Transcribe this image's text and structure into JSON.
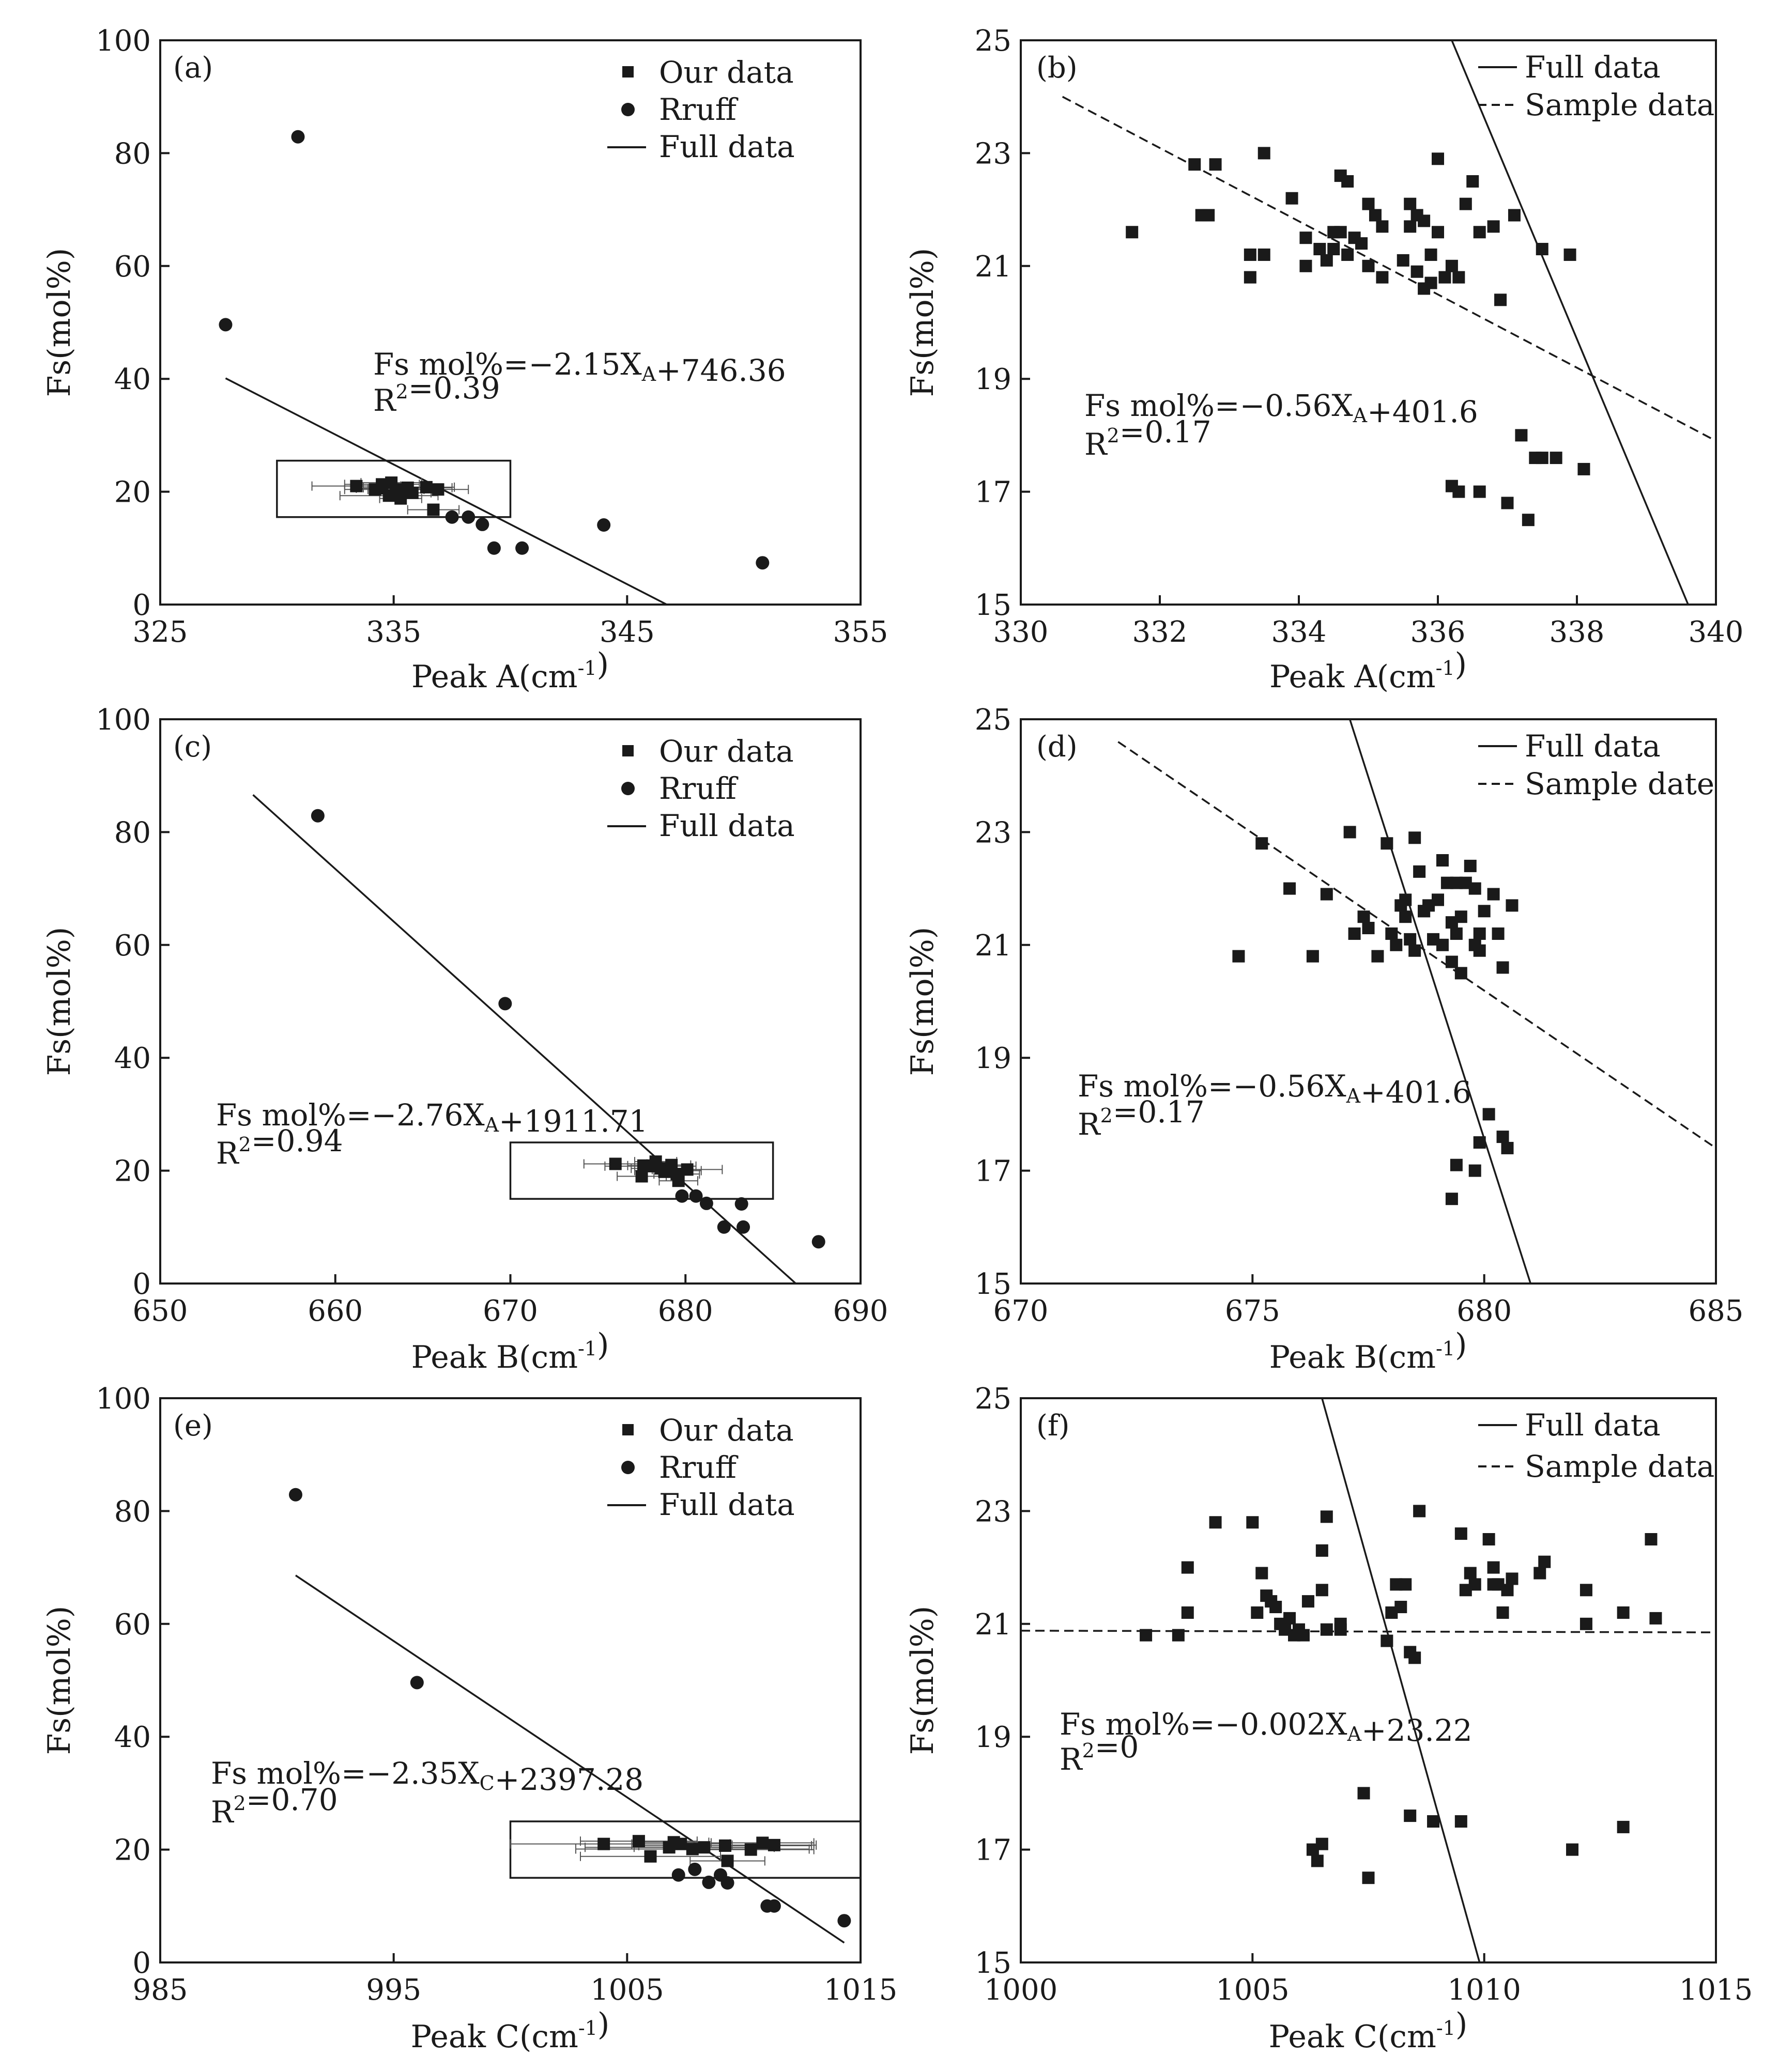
{
  "chart_data": [
    {
      "id": "a",
      "type": "scatter",
      "panel_label": "(a)",
      "xlabel": "Peak A(cm",
      "xlabel_sup": "-1",
      "xlabel_close": ")",
      "ylabel": "Fs(mol%)",
      "xlim": [
        325,
        355
      ],
      "ylim": [
        0,
        100
      ],
      "xticks": [
        325,
        335,
        345,
        355
      ],
      "yticks": [
        0,
        20,
        40,
        60,
        80,
        100
      ],
      "legend": [
        {
          "label": "Our data",
          "style": "square"
        },
        {
          "label": "Rruff",
          "style": "circle"
        },
        {
          "label": "Full data",
          "style": "solid"
        }
      ],
      "annotation": [
        [
          {
            "t": "Fs mol%=−2.15X"
          },
          {
            "t": "A",
            "sub": true
          },
          {
            "t": "+746.36"
          }
        ],
        [
          {
            "t": "R"
          },
          {
            "t": "2",
            "sup": true
          },
          {
            "t": "=0.39"
          }
        ]
      ],
      "box": {
        "x": [
          330,
          340
        ],
        "y": [
          15.5,
          25.5
        ]
      },
      "lines": [
        {
          "style": "solid",
          "x": [
            327.8,
            346.7
          ],
          "y": [
            40.1,
            0
          ]
        }
      ],
      "series": [
        {
          "marker": "square",
          "name": "Our data",
          "x": [
            333.4,
            334.2,
            334.5,
            334.8,
            335.1,
            335.6,
            336.4,
            334.5,
            335.3,
            336.7,
            334.9,
            335.8,
            336.9
          ],
          "y": [
            21.0,
            20.4,
            21.3,
            19.3,
            20.4,
            20.7,
            20.8,
            20.6,
            18.8,
            16.8,
            21.6,
            19.8,
            20.4
          ],
          "xerr": [
            1.9,
            1.3,
            1.6,
            2.1,
            1.2,
            1.9,
            1.2,
            1.1,
            0.9,
            1.1,
            1.3,
            0.8,
            1.3
          ]
        },
        {
          "marker": "circle",
          "name": "Rruff",
          "x": [
            330.9,
            327.8,
            337.5,
            338.2,
            338.8,
            339.3,
            340.5,
            344.0,
            350.8
          ],
          "y": [
            82.9,
            49.6,
            15.5,
            15.5,
            14.2,
            10.0,
            10.0,
            14.1,
            7.4
          ]
        }
      ]
    },
    {
      "id": "b",
      "type": "scatter",
      "panel_label": "(b)",
      "xlabel": "Peak A(cm",
      "xlabel_sup": "-1",
      "xlabel_close": ")",
      "ylabel": "Fs(mol%)",
      "xlim": [
        330,
        340
      ],
      "ylim": [
        15,
        25
      ],
      "xticks": [
        330,
        332,
        334,
        336,
        338,
        340
      ],
      "yticks": [
        15,
        17,
        19,
        21,
        23,
        25
      ],
      "legend": [
        {
          "label": "Full data",
          "style": "solid"
        },
        {
          "label": "Sample data",
          "style": "dashed"
        }
      ],
      "annotation": [
        [
          {
            "t": "Fs mol%=−0.56X"
          },
          {
            "t": "A",
            "sub": true
          },
          {
            "t": "+401.6"
          }
        ],
        [
          {
            "t": "R"
          },
          {
            "t": "2",
            "sup": true
          },
          {
            "t": "=0.17"
          }
        ]
      ],
      "lines": [
        {
          "style": "solid",
          "x": [
            336.2,
            339.6
          ],
          "y": [
            25,
            15
          ]
        },
        {
          "style": "dashed",
          "x": [
            330.6,
            340
          ],
          "y": [
            24.0,
            17.9
          ]
        }
      ],
      "series": [
        {
          "marker": "square",
          "name": "Our data",
          "x": [
            331.6,
            332.5,
            332.6,
            332.7,
            332.8,
            333.3,
            333.3,
            333.5,
            333.5,
            333.9,
            334.1,
            334.1,
            334.3,
            334.4,
            334.5,
            334.5,
            334.6,
            334.6,
            334.7,
            334.7,
            334.8,
            334.9,
            335.0,
            335.0,
            335.1,
            335.2,
            335.2,
            335.5,
            335.6,
            335.6,
            335.7,
            335.7,
            335.8,
            335.8,
            335.9,
            335.9,
            336.0,
            336.0,
            336.1,
            336.2,
            336.3,
            336.4,
            336.5,
            336.6,
            336.8,
            336.9,
            337.1,
            337.5,
            337.9,
            336.2,
            336.3,
            336.6,
            337.0,
            337.2,
            337.3,
            337.4,
            337.5,
            337.7,
            338.1
          ],
          "y": [
            21.6,
            22.8,
            21.9,
            21.9,
            22.8,
            20.8,
            21.2,
            21.2,
            23.0,
            22.2,
            21.5,
            21.0,
            21.3,
            21.1,
            21.6,
            21.3,
            21.6,
            22.6,
            22.5,
            21.2,
            21.5,
            21.4,
            22.1,
            21.0,
            21.9,
            21.7,
            20.8,
            21.1,
            22.1,
            21.7,
            20.9,
            21.9,
            20.6,
            21.8,
            21.2,
            20.7,
            22.9,
            21.6,
            20.8,
            21.0,
            20.8,
            22.1,
            22.5,
            21.6,
            21.7,
            20.4,
            21.9,
            21.3,
            21.2,
            17.1,
            17.0,
            17.0,
            16.8,
            18.0,
            16.5,
            17.6,
            17.6,
            17.6,
            17.4
          ]
        }
      ]
    },
    {
      "id": "c",
      "type": "scatter",
      "panel_label": "(c)",
      "xlabel": "Peak B(cm",
      "xlabel_sup": "-1",
      "xlabel_close": ")",
      "ylabel": "Fs(mol%)",
      "xlim": [
        650,
        690
      ],
      "ylim": [
        0,
        100
      ],
      "xticks": [
        650,
        660,
        670,
        680,
        690
      ],
      "yticks": [
        0,
        20,
        40,
        60,
        80,
        100
      ],
      "legend": [
        {
          "label": "Our data",
          "style": "square"
        },
        {
          "label": "Rruff",
          "style": "circle"
        },
        {
          "label": "Full data",
          "style": "solid"
        }
      ],
      "annotation": [
        [
          {
            "t": "Fs mol%=−2.76X"
          },
          {
            "t": "A",
            "sub": true
          },
          {
            "t": "+1911.71"
          }
        ],
        [
          {
            "t": "R"
          },
          {
            "t": "2",
            "sup": true
          },
          {
            "t": "=0.94"
          }
        ]
      ],
      "box": {
        "x": [
          670,
          685
        ],
        "y": [
          15,
          25
        ]
      },
      "lines": [
        {
          "style": "solid",
          "x": [
            655.3,
            686.3
          ],
          "y": [
            86.6,
            0
          ]
        }
      ],
      "series": [
        {
          "marker": "square",
          "name": "Our data",
          "x": [
            676.0,
            677.5,
            678.0,
            678.3,
            678.6,
            679.0,
            679.2,
            679.5,
            680.1,
            677.6,
            678.8,
            679.6
          ],
          "y": [
            21.2,
            19.0,
            20.8,
            21.6,
            20.4,
            20.0,
            21.0,
            19.4,
            20.2,
            20.9,
            19.8,
            18.2
          ],
          "xerr": [
            1.8,
            1.4,
            2.6,
            1.2,
            1.7,
            1.9,
            1.1,
            1.3,
            2.0,
            0.9,
            1.0,
            1.1
          ]
        },
        {
          "marker": "circle",
          "name": "Rruff",
          "x": [
            659.0,
            669.7,
            679.8,
            680.6,
            681.2,
            682.2,
            683.2,
            683.3,
            687.6
          ],
          "y": [
            82.9,
            49.6,
            15.5,
            15.5,
            14.2,
            10.0,
            14.1,
            10.0,
            7.4
          ]
        }
      ]
    },
    {
      "id": "d",
      "type": "scatter",
      "panel_label": "(d)",
      "xlabel": "Peak B(cm",
      "xlabel_sup": "-1",
      "xlabel_close": ")",
      "ylabel": "Fs(mol%)",
      "xlim": [
        670,
        685
      ],
      "ylim": [
        15,
        25
      ],
      "xticks": [
        670,
        675,
        680,
        685
      ],
      "yticks": [
        15,
        17,
        19,
        21,
        23,
        25
      ],
      "legend": [
        {
          "label": "Full data",
          "style": "solid"
        },
        {
          "label": "Sample date",
          "style": "dashed"
        }
      ],
      "annotation": [
        [
          {
            "t": "Fs mol%=−0.56X"
          },
          {
            "t": "A",
            "sub": true
          },
          {
            "t": "+401.6"
          }
        ],
        [
          {
            "t": "R"
          },
          {
            "t": "2",
            "sup": true
          },
          {
            "t": "=0.17"
          }
        ]
      ],
      "lines": [
        {
          "style": "solid",
          "x": [
            677.1,
            681.0
          ],
          "y": [
            25,
            15
          ]
        },
        {
          "style": "dashed",
          "x": [
            672.1,
            685
          ],
          "y": [
            24.6,
            17.4
          ]
        }
      ],
      "series": [
        {
          "marker": "square",
          "name": "Our data",
          "x": [
            674.7,
            675.2,
            675.8,
            676.3,
            676.6,
            677.1,
            677.2,
            677.4,
            677.5,
            677.7,
            677.9,
            678.0,
            678.1,
            678.2,
            678.3,
            678.3,
            678.4,
            678.5,
            678.6,
            678.7,
            678.8,
            678.9,
            679.0,
            679.1,
            679.1,
            679.2,
            679.3,
            679.3,
            679.4,
            679.5,
            679.6,
            679.7,
            679.8,
            679.9,
            680.0,
            680.2,
            680.3,
            680.4,
            680.6,
            678.5,
            678.7,
            679.0,
            679.4,
            679.8,
            679.5,
            679.9,
            679.3,
            679.4,
            679.8,
            679.9,
            680.1,
            680.4,
            680.5
          ],
          "y": [
            20.8,
            22.8,
            22.0,
            20.8,
            21.9,
            23.0,
            21.2,
            21.5,
            21.3,
            20.8,
            22.8,
            21.2,
            21.0,
            21.7,
            21.8,
            21.5,
            21.1,
            20.9,
            22.3,
            21.6,
            21.7,
            21.1,
            21.8,
            21.0,
            22.5,
            22.1,
            21.4,
            20.7,
            21.2,
            20.5,
            22.1,
            22.4,
            21.0,
            20.9,
            21.6,
            21.9,
            21.2,
            20.6,
            21.7,
            22.9,
            21.6,
            21.8,
            22.1,
            22.0,
            21.5,
            21.2,
            16.5,
            17.1,
            17.0,
            17.5,
            18.0,
            17.6,
            17.4
          ]
        }
      ]
    },
    {
      "id": "e",
      "type": "scatter",
      "panel_label": "(e)",
      "xlabel": "Peak C(cm",
      "xlabel_sup": "-1",
      "xlabel_close": ")",
      "ylabel": "Fs(mol%)",
      "xlim": [
        985,
        1015
      ],
      "ylim": [
        0,
        100
      ],
      "xticks": [
        985,
        995,
        1005,
        1015
      ],
      "yticks": [
        0,
        20,
        40,
        60,
        80,
        100
      ],
      "legend": [
        {
          "label": "Our data",
          "style": "square"
        },
        {
          "label": "Rruff",
          "style": "circle"
        },
        {
          "label": "Full data",
          "style": "solid"
        }
      ],
      "annotation": [
        [
          {
            "t": "Fs mol%=−2.35X"
          },
          {
            "t": "C",
            "sub": true
          },
          {
            "t": "+2397.28"
          }
        ],
        [
          {
            "t": "R"
          },
          {
            "t": "2",
            "sup": true
          },
          {
            "t": "=0.70"
          }
        ]
      ],
      "box": {
        "x": [
          1000,
          1015
        ],
        "y": [
          15,
          25
        ]
      },
      "lines": [
        {
          "style": "solid",
          "x": [
            990.8,
            1014.3
          ],
          "y": [
            68.6,
            3.5
          ]
        }
      ],
      "series": [
        {
          "marker": "square",
          "name": "Our data",
          "x": [
            1004.0,
            1005.5,
            1006.0,
            1006.8,
            1007.3,
            1007.8,
            1008.3,
            1009.2,
            1010.3,
            1010.8,
            1011.3,
            1007.0,
            1009.3
          ],
          "y": [
            21.0,
            21.5,
            18.8,
            20.4,
            21.0,
            20.1,
            20.4,
            20.7,
            20.0,
            21.2,
            20.8,
            21.3,
            18.0
          ],
          "xerr": [
            4.0,
            2.5,
            3.0,
            3.6,
            2.1,
            5.0,
            3.0,
            3.7,
            2.7,
            2.2,
            1.8,
            1.5,
            1.6
          ]
        },
        {
          "marker": "circle",
          "name": "Rruff",
          "x": [
            990.8,
            996.0,
            1007.2,
            1007.9,
            1008.5,
            1009.0,
            1009.3,
            1011.0,
            1011.3,
            1014.3
          ],
          "y": [
            82.9,
            49.6,
            15.5,
            16.5,
            14.2,
            15.5,
            14.1,
            10.0,
            10.0,
            7.4
          ]
        }
      ]
    },
    {
      "id": "f",
      "type": "scatter",
      "panel_label": "(f)",
      "xlabel": "Peak C(cm",
      "xlabel_sup": "-1",
      "xlabel_close": ")",
      "ylabel": "Fs(mol%)",
      "xlim": [
        1000,
        1015
      ],
      "ylim": [
        15,
        25
      ],
      "xticks": [
        1000,
        1005,
        1010,
        1015
      ],
      "yticks": [
        15,
        17,
        19,
        21,
        23,
        25
      ],
      "legend": [
        {
          "label": "Full data",
          "style": "solid"
        },
        {
          "label": "Sample data",
          "style": "dashed"
        }
      ],
      "annotation": [
        [
          {
            "t": "Fs mol%=−0.002X"
          },
          {
            "t": "A",
            "sub": true
          },
          {
            "t": "+23.22"
          }
        ],
        [
          {
            "t": "R"
          },
          {
            "t": "2",
            "sup": true
          },
          {
            "t": "=0"
          }
        ]
      ],
      "lines": [
        {
          "style": "solid",
          "x": [
            1006.5,
            1009.9
          ],
          "y": [
            25,
            15
          ]
        },
        {
          "style": "dashed",
          "x": [
            1000,
            1015
          ],
          "y": [
            20.88,
            20.85
          ]
        }
      ],
      "series": [
        {
          "marker": "square",
          "name": "Our data",
          "x": [
            1002.7,
            1003.4,
            1003.6,
            1003.6,
            1004.2,
            1005.0,
            1005.1,
            1005.2,
            1005.3,
            1005.4,
            1005.5,
            1005.6,
            1005.7,
            1005.8,
            1005.9,
            1006.0,
            1006.1,
            1006.2,
            1006.5,
            1006.5,
            1006.6,
            1006.6,
            1006.9,
            1006.9,
            1007.9,
            1008.0,
            1008.1,
            1008.2,
            1008.3,
            1008.4,
            1008.5,
            1008.6,
            1009.5,
            1009.6,
            1009.7,
            1009.8,
            1010.1,
            1010.2,
            1010.2,
            1010.3,
            1010.4,
            1010.5,
            1010.6,
            1011.2,
            1011.3,
            1012.2,
            1012.2,
            1013.0,
            1013.6,
            1013.7,
            1006.3,
            1006.5,
            1006.4,
            1007.4,
            1007.5,
            1008.4,
            1008.9,
            1009.5,
            1011.9,
            1013.0
          ],
          "y": [
            20.8,
            20.8,
            22.0,
            21.2,
            22.8,
            22.8,
            21.2,
            21.9,
            21.5,
            21.4,
            21.3,
            21.0,
            20.9,
            21.1,
            20.8,
            20.9,
            20.8,
            21.4,
            22.3,
            21.6,
            22.9,
            20.9,
            21.0,
            20.9,
            20.7,
            21.2,
            21.7,
            21.3,
            21.7,
            20.5,
            20.4,
            23.0,
            22.6,
            21.6,
            21.9,
            21.7,
            22.5,
            22.0,
            21.7,
            21.7,
            21.2,
            21.6,
            21.8,
            21.9,
            22.1,
            21.6,
            21.0,
            21.2,
            22.5,
            21.1,
            17.0,
            17.1,
            16.8,
            18.0,
            16.5,
            17.6,
            17.5,
            17.5,
            17.0,
            17.4
          ]
        }
      ]
    }
  ]
}
